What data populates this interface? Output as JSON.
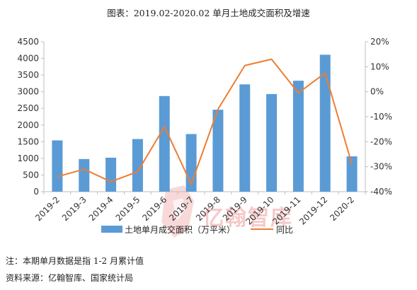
{
  "title": "图表：2019.02-2020.02 单月土地成交面积及增速",
  "notes": {
    "note": "注：本期单月数据是指 1-2 月累计值",
    "source": "资料来源：亿翰智库、国家统计局"
  },
  "watermark": "亿翰智库",
  "colors": {
    "bar": "#5b9bd5",
    "line": "#ed7d31",
    "watermark": "#f2b8b8"
  },
  "chart_data": {
    "type": "bar",
    "categories": [
      "2019-2",
      "2019-3",
      "2019-4",
      "2019-5",
      "2019-6",
      "2019-7",
      "2019-8",
      "2019-9",
      "2019-10",
      "2019-11",
      "2019-12",
      "2020-2"
    ],
    "series": [
      {
        "name": "土地单月成交面积（万平米）",
        "type": "bar",
        "axis": "left",
        "values": [
          1540,
          980,
          1020,
          1580,
          2870,
          1730,
          2460,
          3220,
          2930,
          3330,
          4110,
          1060
        ]
      },
      {
        "name": "同比",
        "type": "line",
        "axis": "right",
        "values": [
          -34,
          -31,
          -36,
          -32,
          -14,
          -37,
          -7,
          10.5,
          13,
          -0.5,
          7.5,
          -29
        ]
      }
    ],
    "y_left": {
      "min": 0,
      "max": 4500,
      "step": 500,
      "ticks": [
        "0",
        "500",
        "1000",
        "1500",
        "2000",
        "2500",
        "3000",
        "3500",
        "4000",
        "4500"
      ]
    },
    "y_right": {
      "min": -40,
      "max": 20,
      "step": 10,
      "ticks": [
        "-40%",
        "-30%",
        "-20%",
        "-10%",
        "0%",
        "10%",
        "20%"
      ]
    },
    "grid": false,
    "legend_position": "bottom"
  }
}
